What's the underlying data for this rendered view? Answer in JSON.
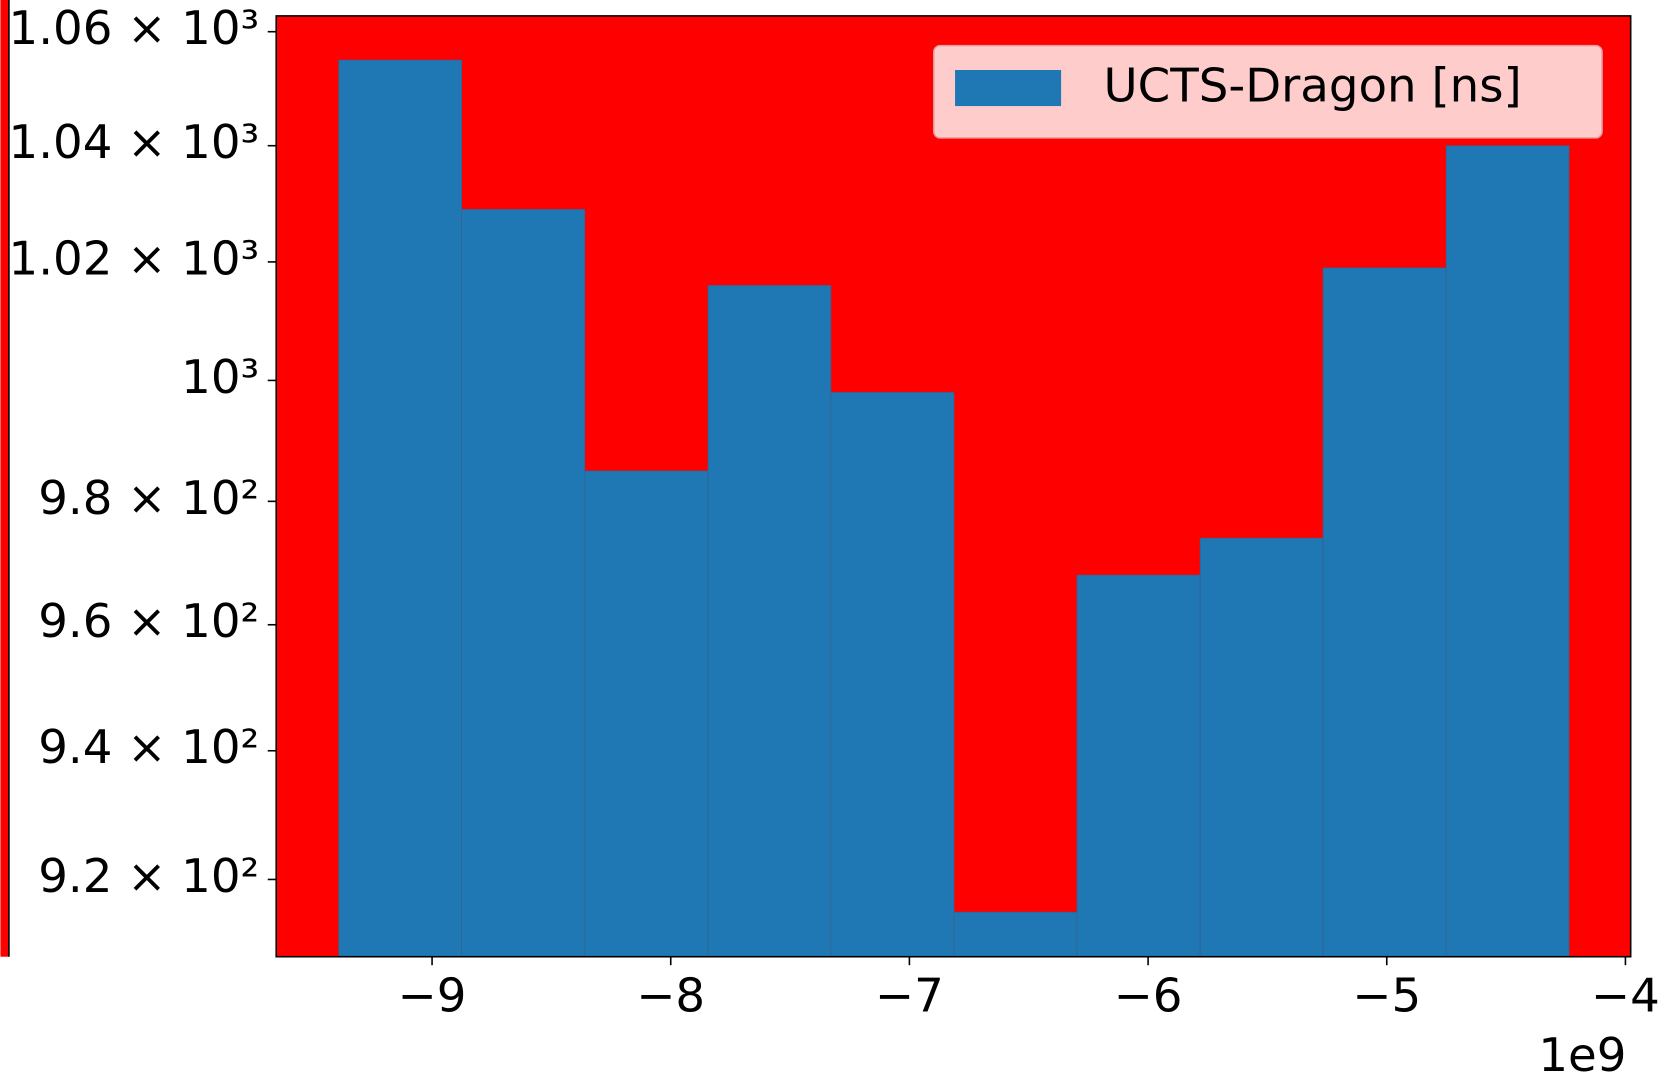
{
  "chart_data": {
    "type": "histogram",
    "bins": [
      -9.391,
      -8.876,
      -8.36,
      -7.844,
      -7.329,
      -6.813,
      -6.298,
      -5.782,
      -5.267,
      -4.751,
      -4.236
    ],
    "series": [
      {
        "name": "UCTS-Dragon [ns]",
        "color": "#1f77b4",
        "values": [
          1055,
          1029,
          985,
          1016,
          998,
          915,
          968,
          974,
          1019,
          1040
        ]
      }
    ],
    "xlim": [
      -9.653,
      -3.978
    ],
    "xticks": [
      {
        "value": -9,
        "label": "−9"
      },
      {
        "value": -8,
        "label": "−8"
      },
      {
        "value": -7,
        "label": "−7"
      },
      {
        "value": -6,
        "label": "−6"
      },
      {
        "value": -5,
        "label": "−5"
      },
      {
        "value": -4,
        "label": "−4"
      }
    ],
    "x_offset_label": "1e9",
    "ylim": [
      908.2,
      1062.8
    ],
    "yscale": "log",
    "yticks": [
      {
        "value": 920,
        "label": "9.2 × 10²"
      },
      {
        "value": 940,
        "label": "9.4 × 10²"
      },
      {
        "value": 960,
        "label": "9.6 × 10²"
      },
      {
        "value": 980,
        "label": "9.8 × 10²"
      },
      {
        "value": 1000,
        "label": "10³"
      },
      {
        "value": 1020,
        "label": "1.02 × 10³"
      },
      {
        "value": 1040,
        "label": "1.04 × 10³"
      },
      {
        "value": 1060,
        "label": "1.06 × 10³"
      }
    ],
    "axes_facecolor": "#ff0000",
    "legend": "upper right",
    "legend_facecolor": "#ffcccc"
  }
}
